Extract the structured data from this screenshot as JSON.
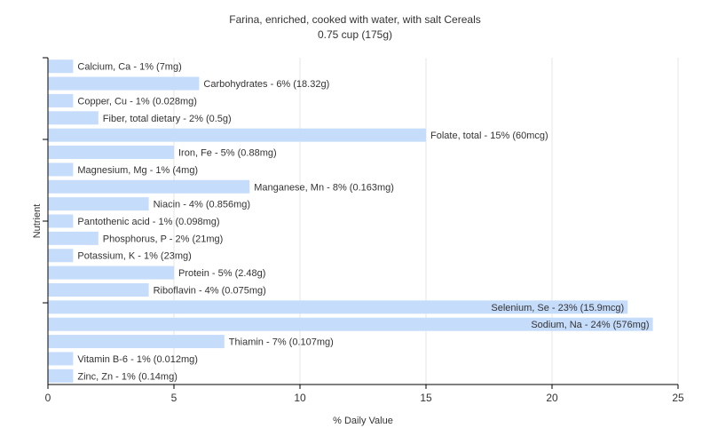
{
  "chart_data": {
    "type": "bar",
    "orientation": "horizontal",
    "title": "Farina, enriched, cooked with water, with salt Cereals",
    "subtitle": "0.75 cup (175g)",
    "xlabel": "% Daily Value",
    "ylabel": "Nutrient",
    "xlim": [
      0,
      25
    ],
    "xticks": [
      0,
      5,
      10,
      15,
      20,
      25
    ],
    "grid": true,
    "bar_color": "#c6dcfb",
    "categories": [
      "Calcium, Ca",
      "Carbohydrates",
      "Copper, Cu",
      "Fiber, total dietary",
      "Folate, total",
      "Iron, Fe",
      "Magnesium, Mg",
      "Manganese, Mn",
      "Niacin",
      "Pantothenic acid",
      "Phosphorus, P",
      "Potassium, K",
      "Protein",
      "Riboflavin",
      "Selenium, Se",
      "Sodium, Na",
      "Thiamin",
      "Vitamin B-6",
      "Zinc, Zn"
    ],
    "values": [
      1,
      6,
      1,
      2,
      15,
      5,
      1,
      8,
      4,
      1,
      2,
      1,
      5,
      4,
      23,
      24,
      7,
      1,
      1
    ],
    "labels": [
      "Calcium, Ca - 1% (7mg)",
      "Carbohydrates - 6% (18.32g)",
      "Copper, Cu - 1% (0.028mg)",
      "Fiber, total dietary - 2% (0.5g)",
      "Folate, total - 15% (60mcg)",
      "Iron, Fe - 5% (0.88mg)",
      "Magnesium, Mg - 1% (4mg)",
      "Manganese, Mn - 8% (0.163mg)",
      "Niacin - 4% (0.856mg)",
      "Pantothenic acid - 1% (0.098mg)",
      "Phosphorus, P - 2% (21mg)",
      "Potassium, K - 1% (23mg)",
      "Protein - 5% (2.48g)",
      "Riboflavin - 4% (0.075mg)",
      "Selenium, Se - 23% (15.9mcg)",
      "Sodium, Na - 24% (576mg)",
      "Thiamin - 7% (0.107mg)",
      "Vitamin B-6 - 1% (0.012mg)",
      "Zinc, Zn - 1% (0.14mg)"
    ]
  }
}
